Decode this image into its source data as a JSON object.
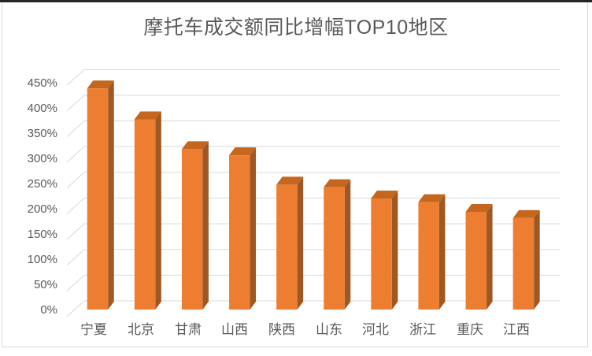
{
  "window": {
    "background": "#FFFFFF",
    "top_border_color": "#262626",
    "frame_border_color": "#D9D9D9"
  },
  "chart_data": {
    "type": "bar",
    "variant": "3d-clustered-column",
    "title": "摩托车成交额同比增幅TOP10地区",
    "categories": [
      "宁夏",
      "北京",
      "甘肃",
      "山西",
      "陕西",
      "山东",
      "河北",
      "浙江",
      "重庆",
      "江西"
    ],
    "values": [
      430,
      370,
      312,
      300,
      243,
      238,
      216,
      209,
      190,
      178
    ],
    "unit": "%",
    "xlabel": "",
    "ylabel": "",
    "ylim": [
      0,
      450
    ],
    "y_tick_step": 50,
    "y_ticks": [
      "450%",
      "400%",
      "350%",
      "300%",
      "250%",
      "200%",
      "150%",
      "100%",
      "50%",
      "0%"
    ],
    "grid": true,
    "legend": "none",
    "colors": {
      "bar_front": "#ED7D31",
      "bar_side": "#9E5824",
      "bar_top": "#C4661E",
      "gridline": "#D9D9D9",
      "text": "#595959"
    }
  }
}
